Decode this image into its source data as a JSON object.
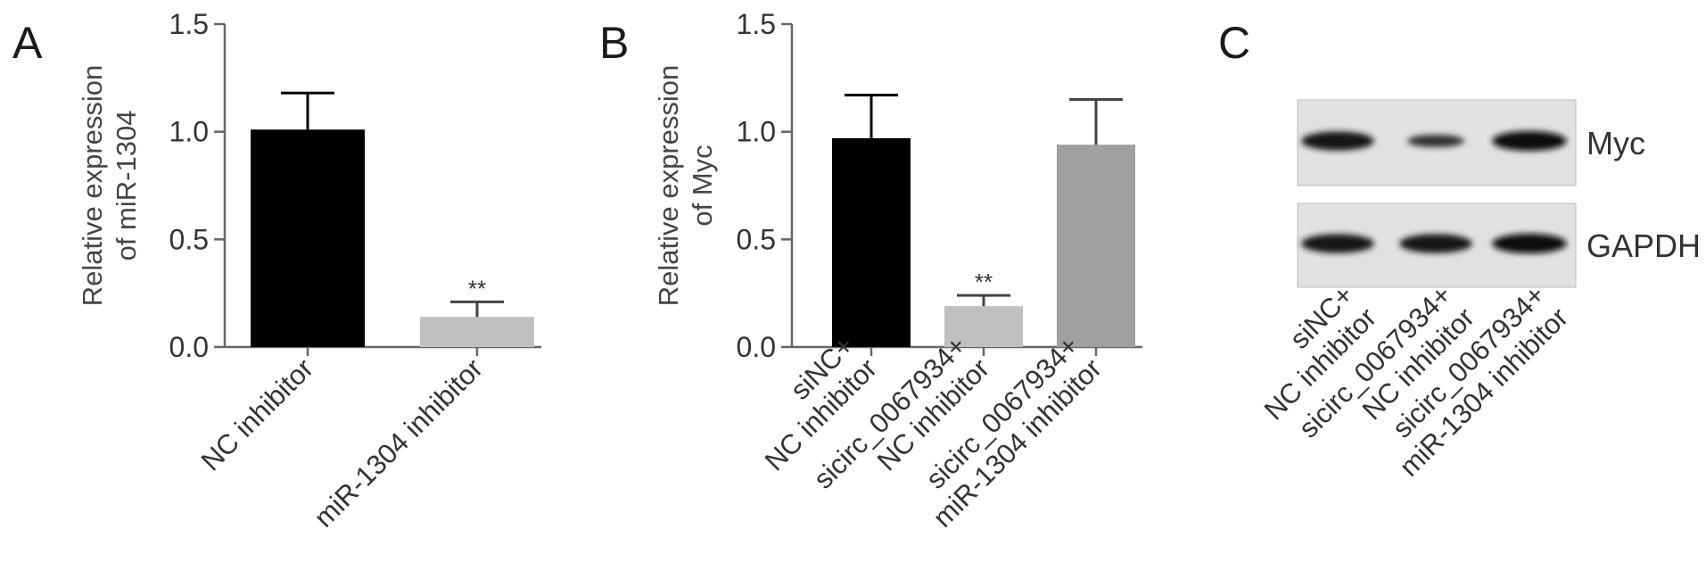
{
  "chart_data": [
    {
      "panel": "A",
      "type": "bar",
      "ylabel": [
        "Relative expression",
        "of miR-1304"
      ],
      "ylim": [
        0,
        1.5
      ],
      "yticks": [
        "0.0",
        "0.5",
        "1.0",
        "1.5"
      ],
      "categories": [
        [
          "NC inhibitor"
        ],
        [
          "miR-1304 inhibitor"
        ]
      ],
      "values": [
        1.01,
        0.14
      ],
      "errors": [
        0.17,
        0.07
      ],
      "bar_colors": [
        "#000000",
        "#c0c0c0"
      ],
      "significance": [
        "",
        "**"
      ]
    },
    {
      "panel": "B",
      "type": "bar",
      "ylabel": [
        "Relative expression",
        "of Myc"
      ],
      "ylim": [
        0,
        1.5
      ],
      "yticks": [
        "0.0",
        "0.5",
        "1.0",
        "1.5"
      ],
      "categories": [
        [
          "siNC+",
          "NC inhibitor"
        ],
        [
          "sicirc_0067934+",
          "NC inhibitor"
        ],
        [
          "sicirc_0067934+",
          "miR-1304 inhibitor"
        ]
      ],
      "values": [
        0.97,
        0.19,
        0.94
      ],
      "errors": [
        0.2,
        0.05,
        0.21
      ],
      "bar_colors": [
        "#000000",
        "#c0c0c0",
        "#a0a0a0"
      ],
      "significance": [
        "",
        "**",
        ""
      ]
    }
  ],
  "blot": {
    "panel": "C",
    "bands": [
      {
        "label": "Myc",
        "intensities": [
          0.85,
          0.45,
          0.9
        ]
      },
      {
        "label": "GAPDH",
        "intensities": [
          0.85,
          0.85,
          0.9
        ]
      }
    ],
    "lanes": [
      [
        "siNC+",
        "NC inhibitor"
      ],
      [
        "sicirc_0067934+",
        "NC inhibitor"
      ],
      [
        "sicirc_0067934+",
        "miR-1304 inhibitor"
      ]
    ]
  }
}
